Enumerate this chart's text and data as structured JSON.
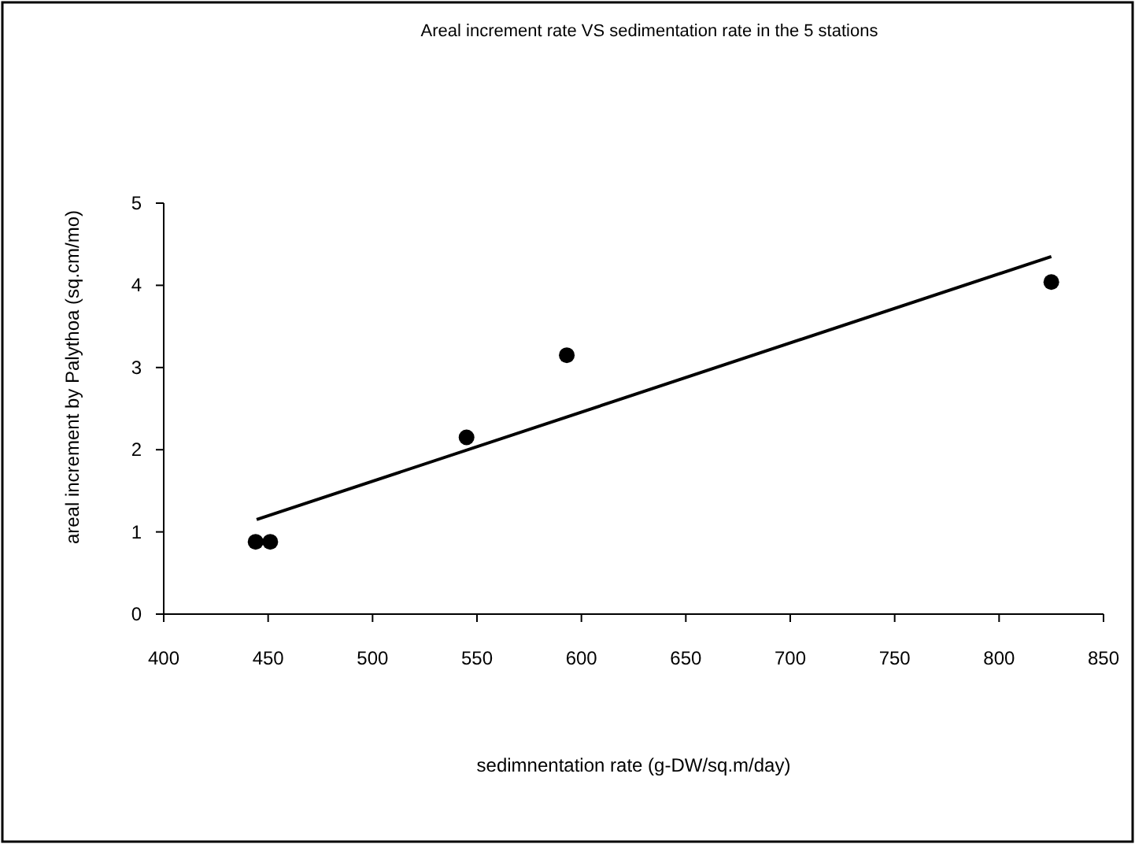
{
  "chart_data": {
    "type": "scatter",
    "title": "Areal increment rate VS sedimentation rate in the 5 stations",
    "xlabel": "sedimnentation rate (g-DW/sq.m/day)",
    "ylabel": "areal increment by Palythoa  (sq.cm/mo)",
    "series": [
      {
        "color": "#000000",
        "marker": "circle",
        "x": [
          444,
          451,
          545,
          593,
          825
        ],
        "values": [
          0.88,
          0.88,
          2.15,
          3.15,
          4.04
        ]
      },
      {
        "type": "line",
        "color": "#000000",
        "marker": "none",
        "x": [
          444.5,
          825
        ],
        "values": [
          1.15,
          4.35
        ]
      }
    ],
    "xlim": [
      400,
      850
    ],
    "xticks": [
      400,
      450,
      500,
      550,
      600,
      650,
      700,
      750,
      800,
      850
    ],
    "ylim": [
      0,
      5
    ],
    "yticks": [
      0,
      1,
      2,
      3,
      4,
      5
    ],
    "grid": false
  }
}
